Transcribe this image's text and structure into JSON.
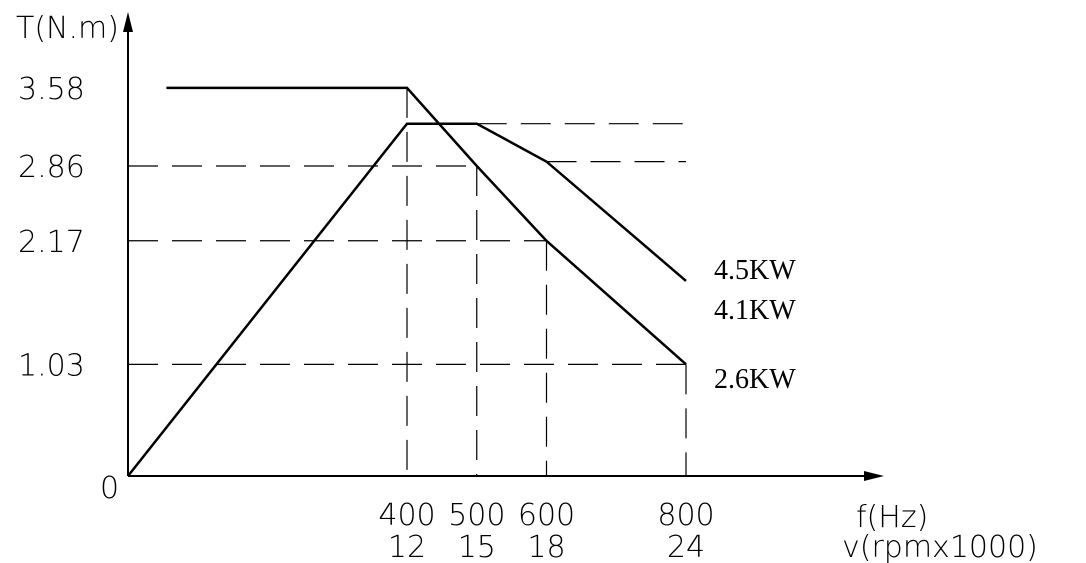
{
  "chart_data": {
    "type": "line",
    "title": "",
    "ylabel": "T(N.m)",
    "xlabel": "f(Hz)",
    "xlabel2": "v(rpmx1000)",
    "xlim": [
      0,
      1100
    ],
    "ylim": [
      0,
      4.3
    ],
    "y_ticks": [
      "3.58",
      "2.86",
      "2.17",
      "1.03"
    ],
    "origin_label": "0",
    "x_ticks": [
      {
        "f": "400",
        "v": "12"
      },
      {
        "f": "500",
        "v": "15"
      },
      {
        "f": "600",
        "v": "18"
      },
      {
        "f": "800",
        "v": "24"
      }
    ],
    "series": [
      {
        "role": "torque",
        "points": [
          [
            55,
            3.58
          ],
          [
            400,
            3.58
          ],
          [
            500,
            2.86
          ],
          [
            600,
            2.17
          ],
          [
            800,
            1.03
          ]
        ]
      },
      {
        "role": "power",
        "points": [
          [
            0,
            0
          ],
          [
            400,
            3.25
          ],
          [
            500,
            3.25
          ],
          [
            600,
            2.9
          ],
          [
            800,
            1.8
          ]
        ]
      }
    ],
    "annotations": [
      "4.5KW",
      "4.1KW",
      "2.6KW"
    ]
  }
}
